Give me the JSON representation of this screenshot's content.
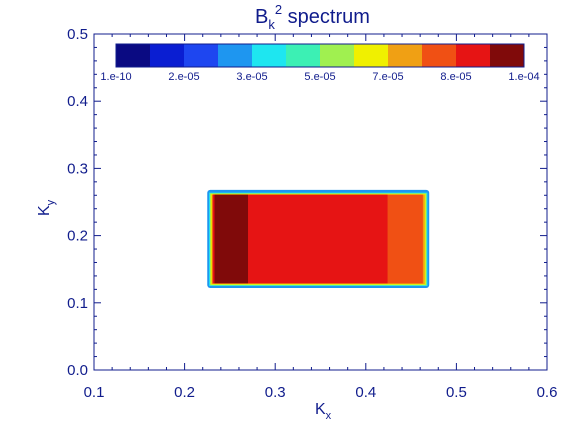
{
  "chart_data": {
    "type": "heatmap",
    "title": {
      "main": "B",
      "sub": "k",
      "sup": "2",
      "rest": " spectrum"
    },
    "xlabel": {
      "main": "K",
      "sub": "x"
    },
    "ylabel": {
      "main": "K",
      "sub": "y"
    },
    "xlim": [
      0.1,
      0.6
    ],
    "ylim": [
      0.0,
      0.5
    ],
    "x_ticks": [
      "0.1",
      "0.2",
      "0.3",
      "0.4",
      "0.5",
      "0.6"
    ],
    "y_ticks": [
      "0.0",
      "0.1",
      "0.2",
      "0.3",
      "0.4",
      "0.5"
    ],
    "colorbar": {
      "colors": [
        "#0a0a82",
        "#0a1ed2",
        "#1e46f0",
        "#1e96f0",
        "#1ee6f0",
        "#3cf0b4",
        "#a0f050",
        "#f0f000",
        "#f0a014",
        "#f05014",
        "#e61414",
        "#800a0a"
      ],
      "labels": [
        "1.e-10",
        "2.e-05",
        "3.e-05",
        "5.e-05",
        "7.e-05",
        "8.e-05",
        "1.e-04"
      ]
    },
    "regions": [
      {
        "x0": 0.225,
        "x1": 0.47,
        "y0": 0.122,
        "y1": 0.268,
        "color": "#1e96f0"
      },
      {
        "x0": 0.227,
        "x1": 0.468,
        "y0": 0.125,
        "y1": 0.264,
        "color": "#1ee6f0"
      },
      {
        "x0": 0.228,
        "x1": 0.467,
        "y0": 0.126,
        "y1": 0.263,
        "color": "#a0f050"
      },
      {
        "x0": 0.229,
        "x1": 0.466,
        "y0": 0.127,
        "y1": 0.262,
        "color": "#f0f000"
      },
      {
        "x0": 0.23,
        "x1": 0.465,
        "y0": 0.128,
        "y1": 0.261,
        "color": "#f0a014"
      },
      {
        "x0": 0.231,
        "x1": 0.463,
        "y0": 0.129,
        "y1": 0.261,
        "color": "#f05014"
      },
      {
        "x0": 0.231,
        "x1": 0.424,
        "y0": 0.129,
        "y1": 0.261,
        "color": "#e61414"
      },
      {
        "x0": 0.233,
        "x1": 0.27,
        "y0": 0.129,
        "y1": 0.261,
        "color": "#800a0a"
      }
    ]
  }
}
